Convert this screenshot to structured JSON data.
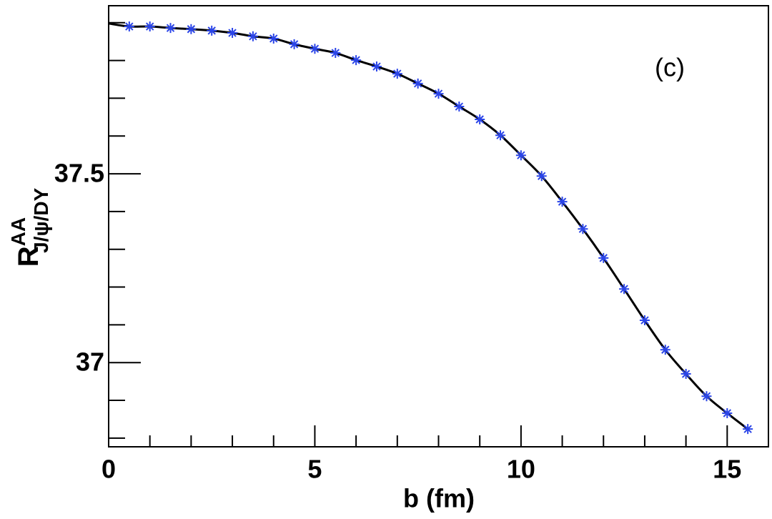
{
  "chart_data": {
    "type": "line",
    "xlabel": "b (fm)",
    "ylabel": {
      "main": "R",
      "sup": "AA",
      "sub": "J/ψ/DY"
    },
    "annotation": "(c)",
    "xlim": [
      0,
      16
    ],
    "ylim": [
      36.777,
      37.945
    ],
    "xticks": [
      0,
      5,
      10,
      15
    ],
    "xminorticks": [
      1,
      2,
      3,
      4,
      6,
      7,
      8,
      9,
      11,
      12,
      13,
      14,
      16
    ],
    "yticks": [
      37,
      37.5
    ],
    "yminorticks": [
      36.8,
      36.9,
      37.1,
      37.2,
      37.3,
      37.4,
      37.6,
      37.7,
      37.8,
      37.9
    ],
    "series": [
      {
        "style": "line",
        "color": "#000000",
        "x": [
          0,
          0.5,
          1,
          1.5,
          2,
          2.5,
          3,
          3.5,
          4,
          4.5,
          5,
          5.5,
          6,
          6.5,
          7,
          7.5,
          8,
          8.5,
          9,
          9.5,
          10,
          10.5,
          11,
          11.5,
          12,
          12.5,
          13,
          13.5,
          14,
          14.5,
          15,
          15.5
        ],
        "values": [
          37.898,
          37.89,
          37.89,
          37.886,
          37.883,
          37.879,
          37.873,
          37.864,
          37.858,
          37.843,
          37.831,
          37.82,
          37.801,
          37.784,
          37.765,
          37.739,
          37.712,
          37.678,
          37.644,
          37.602,
          37.549,
          37.494,
          37.426,
          37.354,
          37.277,
          37.195,
          37.112,
          37.034,
          36.97,
          36.911,
          36.866,
          36.824
        ]
      },
      {
        "style": "marker",
        "color": "#2b45e8",
        "x": [
          0.5,
          1,
          1.5,
          2,
          2.5,
          3,
          3.5,
          4,
          4.5,
          5,
          5.5,
          6,
          6.5,
          7,
          7.5,
          8,
          8.5,
          9,
          9.5,
          10,
          10.5,
          11,
          11.5,
          12,
          12.5,
          13,
          13.5,
          14,
          14.5,
          15,
          15.5
        ],
        "values": [
          37.89,
          37.89,
          37.886,
          37.883,
          37.879,
          37.873,
          37.864,
          37.858,
          37.843,
          37.831,
          37.82,
          37.801,
          37.784,
          37.765,
          37.739,
          37.712,
          37.678,
          37.644,
          37.602,
          37.549,
          37.494,
          37.426,
          37.354,
          37.277,
          37.195,
          37.112,
          37.034,
          36.97,
          36.911,
          36.866,
          36.824
        ]
      }
    ]
  }
}
